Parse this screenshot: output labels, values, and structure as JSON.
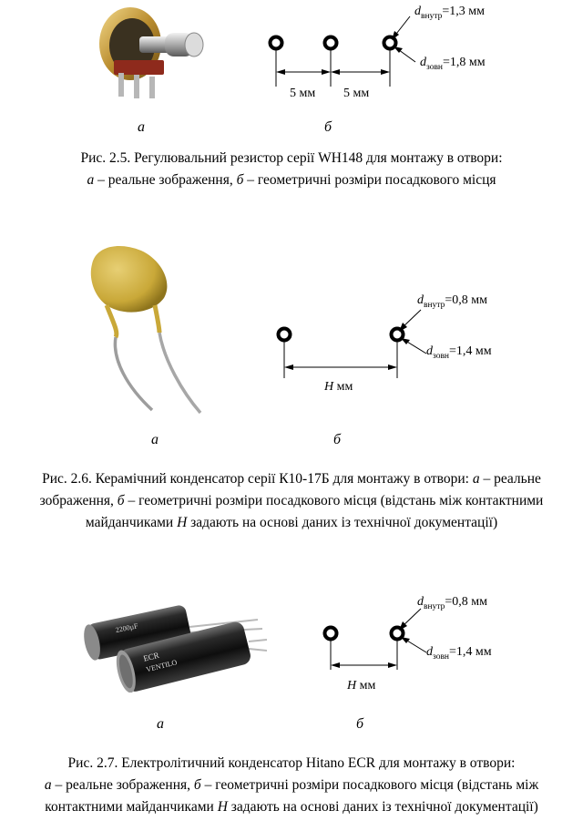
{
  "figures": [
    {
      "id": "2.5",
      "photo_label": "а",
      "drawing_label": "б",
      "dimensions": {
        "d_inner": {
          "symbol": "d",
          "sub": "внутр",
          "value": "=1,3 мм"
        },
        "d_outer": {
          "symbol": "d",
          "sub": "зовн",
          "value": "=1,8 мм"
        },
        "spacing_1": "5 мм",
        "spacing_2": "5 мм"
      },
      "caption": {
        "line1": "Рис. 2.5. Регулювальний резистор серії WH148 для монтажу в отвори:",
        "line2_a": "а",
        "line2_b": " – реальне зображення, ",
        "line2_c": "б",
        "line2_d": " – геометричні розміри посадкового місця"
      }
    },
    {
      "id": "2.6",
      "photo_label": "а",
      "drawing_label": "б",
      "dimensions": {
        "d_inner": {
          "symbol": "d",
          "sub": "внутр",
          "value": "=0,8 мм"
        },
        "d_outer": {
          "symbol": "d",
          "sub": "зовн",
          "value": "=1,4 мм"
        },
        "spacing_symbol": "H",
        "spacing_unit": " мм"
      },
      "caption": {
        "line1_a": "Рис. 2.6. Керамічний конденсатор серії К10-17Б для монтажу в отвори: ",
        "line1_b": "а",
        "line1_c": " – реальне",
        "line2_a": "зображення, ",
        "line2_b": "б",
        "line2_c": " – геометричні розміри посадкового місця (відстань між контактними",
        "line3_a": "майданчиками ",
        "line3_b": "H",
        "line3_c": " задають на основі даних із технічної документації)"
      }
    },
    {
      "id": "2.7",
      "photo_label": "а",
      "drawing_label": "б",
      "dimensions": {
        "d_inner": {
          "symbol": "d",
          "sub": "внутр",
          "value": "=0,8 мм"
        },
        "d_outer": {
          "symbol": "d",
          "sub": "зовн",
          "value": "=1,4 мм"
        },
        "spacing_symbol": "H",
        "spacing_unit": " мм"
      },
      "capacitor_marking": {
        "brand": "ECR",
        "rating": "2200µF",
        "series": "VENTILO"
      },
      "caption": {
        "line1": "Рис. 2.7. Електролітичний конденсатор Hitano ECR для монтажу в отвори:",
        "line2_a": "а",
        "line2_b": " – реальне зображення, ",
        "line2_c": "б",
        "line2_d": " – геометричні розміри посадкового місця (відстань між",
        "line3_a": "контактними майданчиками ",
        "line3_b": "H",
        "line3_c": " задають на основі даних із технічної документації)"
      }
    }
  ]
}
